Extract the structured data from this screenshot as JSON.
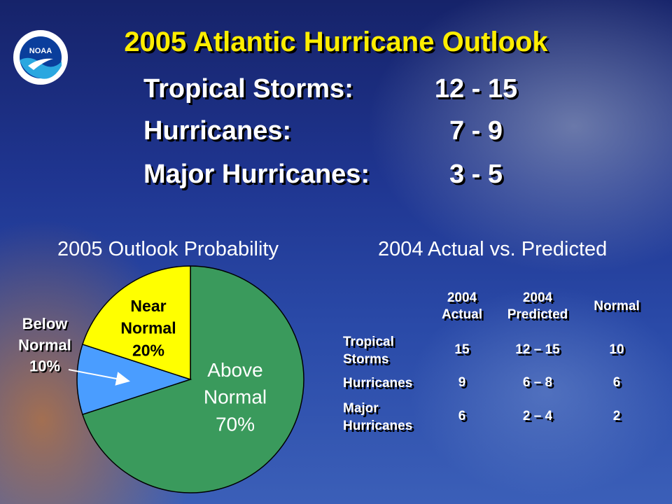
{
  "header": {
    "title": "2005 Atlantic Hurricane Outlook",
    "logo_text": "NOAA"
  },
  "outlook": [
    {
      "label": "Tropical Storms:",
      "value": "12 - 15"
    },
    {
      "label": "Hurricanes:",
      "value": "7 - 9"
    },
    {
      "label": "Major Hurricanes:",
      "value": "3 - 5"
    }
  ],
  "chart_data": [
    {
      "type": "pie",
      "title": "2005 Outlook Probability",
      "slices": [
        {
          "label_lines": [
            "Above",
            "Normal",
            "70%"
          ],
          "value": 70,
          "color": "#3a9a5c"
        },
        {
          "label_lines": [
            "Below",
            "Normal",
            "10%"
          ],
          "value": 10,
          "color": "#4a9dff"
        },
        {
          "label_lines": [
            "Near",
            "Normal",
            "20%"
          ],
          "value": 20,
          "color": "#ffff00"
        }
      ]
    },
    {
      "type": "table",
      "title": "2004 Actual vs. Predicted",
      "columns": [
        [
          "2004",
          "Actual"
        ],
        [
          "2004",
          "Predicted"
        ],
        [
          "Normal"
        ]
      ],
      "rows": [
        {
          "label": [
            "Tropical",
            "Storms"
          ],
          "values": [
            "15",
            "12 – 15",
            "10"
          ]
        },
        {
          "label": [
            "Hurricanes"
          ],
          "values": [
            "9",
            "6 – 8",
            "6"
          ]
        },
        {
          "label": [
            "Major",
            "Hurricanes"
          ],
          "values": [
            "6",
            "2 – 4",
            "2"
          ]
        }
      ]
    }
  ],
  "colors": {
    "title": "#ffee00",
    "text": "#ffffff",
    "background": "#1f3590"
  }
}
